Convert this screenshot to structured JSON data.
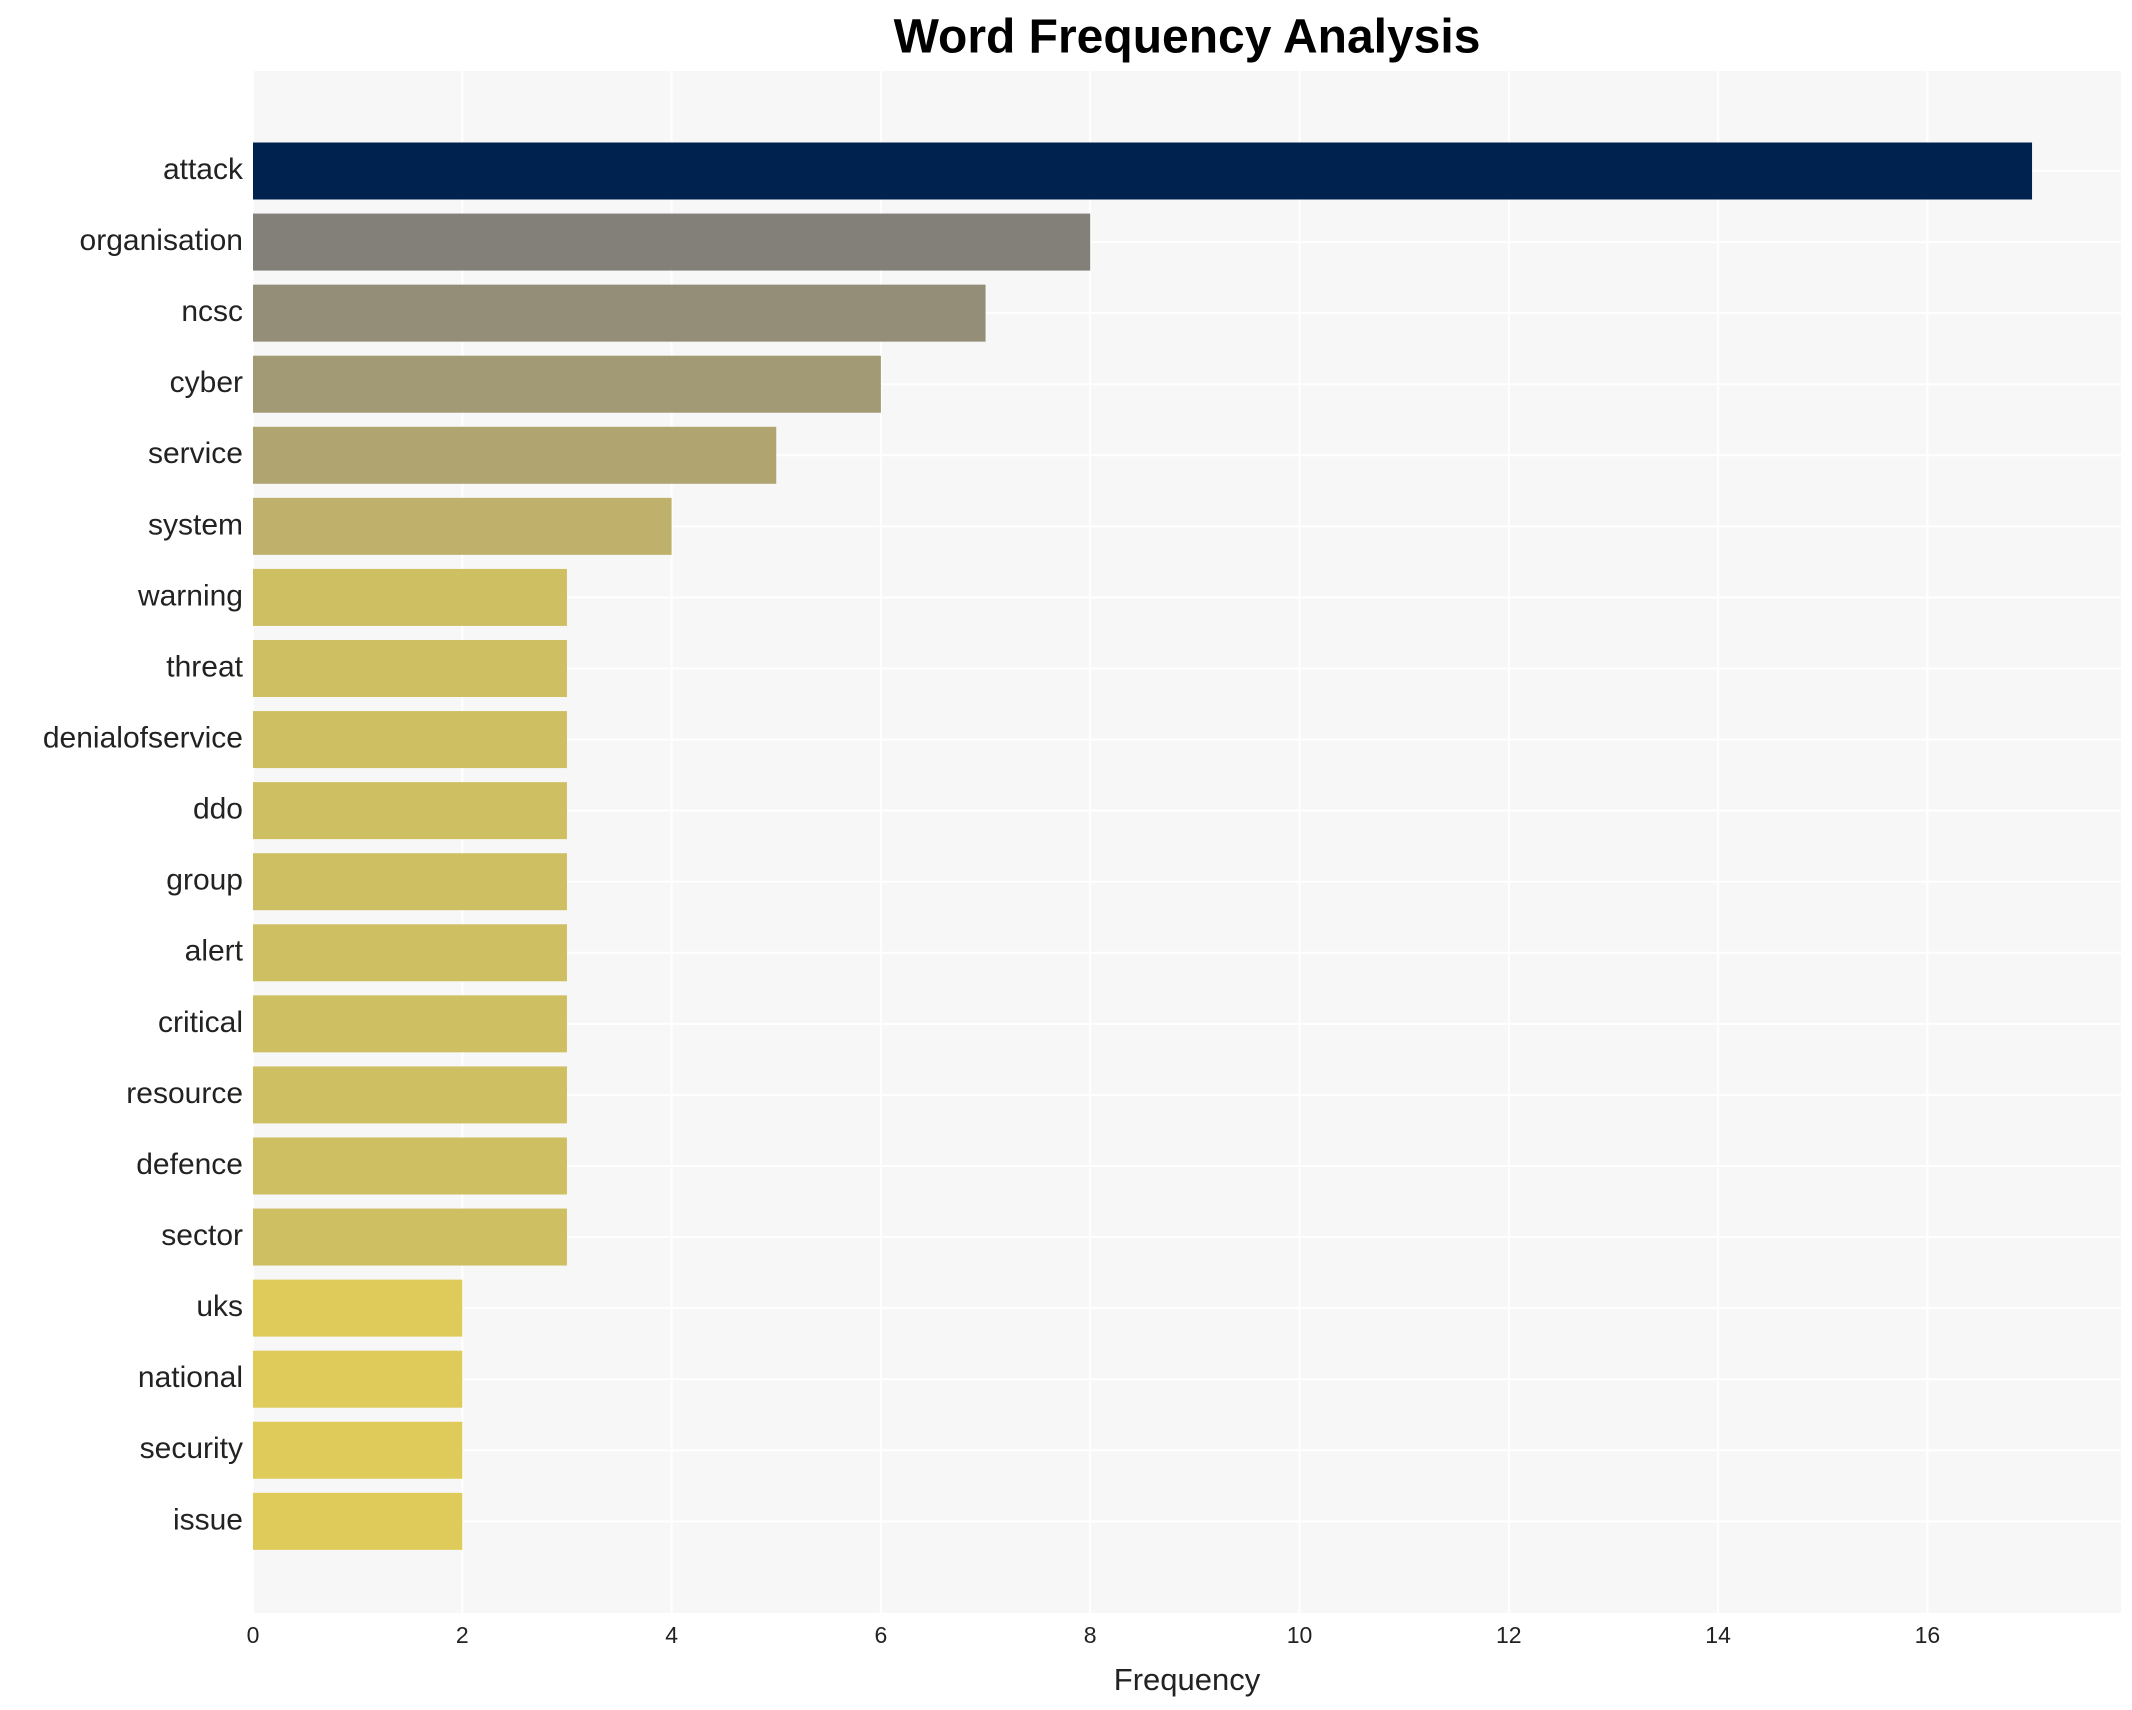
{
  "chart_data": {
    "type": "barh",
    "title": "Word Frequency Analysis",
    "xlabel": "Frequency",
    "categories": [
      "attack",
      "organisation",
      "ncsc",
      "cyber",
      "service",
      "system",
      "warning",
      "threat",
      "denialofservice",
      "ddo",
      "group",
      "alert",
      "critical",
      "resource",
      "defence",
      "sector",
      "uks",
      "national",
      "security",
      "issue"
    ],
    "values": [
      17,
      8,
      7,
      6,
      5,
      4,
      3,
      3,
      3,
      3,
      3,
      3,
      3,
      3,
      3,
      3,
      2,
      2,
      2,
      2
    ],
    "colors": [
      "#00224e",
      "#838079",
      "#948d77",
      "#a19a74",
      "#b0a571",
      "#bfb06b",
      "#cfbf63",
      "#cfbf63",
      "#cfbf63",
      "#cfbf63",
      "#cfbf63",
      "#cfbf63",
      "#cfbf63",
      "#cfbf63",
      "#cfbf63",
      "#cfbf63",
      "#dfcb5a",
      "#dfcb5a",
      "#dfcb5a",
      "#dfcb5a"
    ],
    "xlim": [
      0,
      17.85
    ],
    "xticks": [
      0,
      2,
      4,
      6,
      8,
      10,
      12,
      14,
      16
    ],
    "grid": true
  }
}
